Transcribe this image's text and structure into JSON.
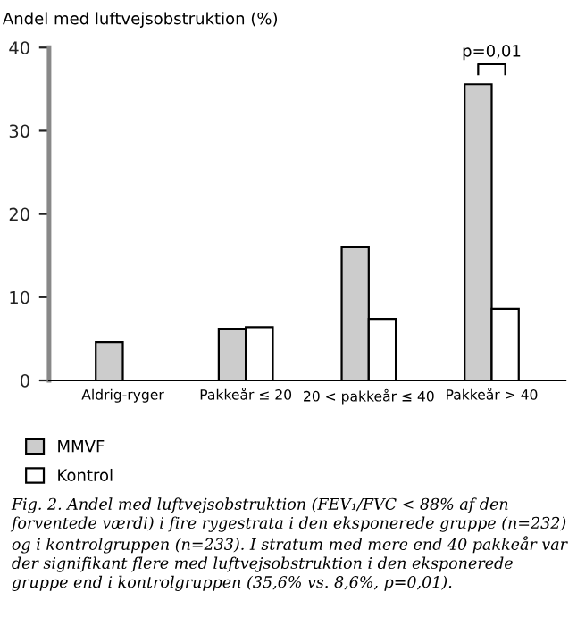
{
  "chart_data": {
    "type": "bar",
    "title": "Andel med luftvejsobstruktion (%)",
    "categories": [
      "Aldrig-ryger",
      "Pakkeår ≤ 20",
      "20 < pakkeår ≤ 40",
      "Pakkeår > 40"
    ],
    "series": [
      {
        "name": "MMVF",
        "color": "#cccccc",
        "values": [
          4.6,
          6.2,
          16.0,
          35.6
        ]
      },
      {
        "name": "Kontrol",
        "color": "#ffffff",
        "values": [
          null,
          6.4,
          7.4,
          8.6
        ]
      }
    ],
    "ylim": [
      0,
      40
    ],
    "yticks": [
      0,
      10,
      20,
      30,
      40
    ],
    "grid": false,
    "legend": "bottom left",
    "annotations": [
      "p=0,01",
      "Fig. 2. Andel med luftvejsobstruktion (FEV₁/FVC < 88% af den forventede værdi) i fire rygestrata i den eksponerede gruppe (n=232) og i kontrolgruppen (n=233). I stratum med mere end 40 pakkeår var der signifikant flere med luftvejsobstruktion i den eksponerede gruppe end i kontrolgruppen (35,6% vs. 8,6%, p=0,01)."
    ]
  }
}
